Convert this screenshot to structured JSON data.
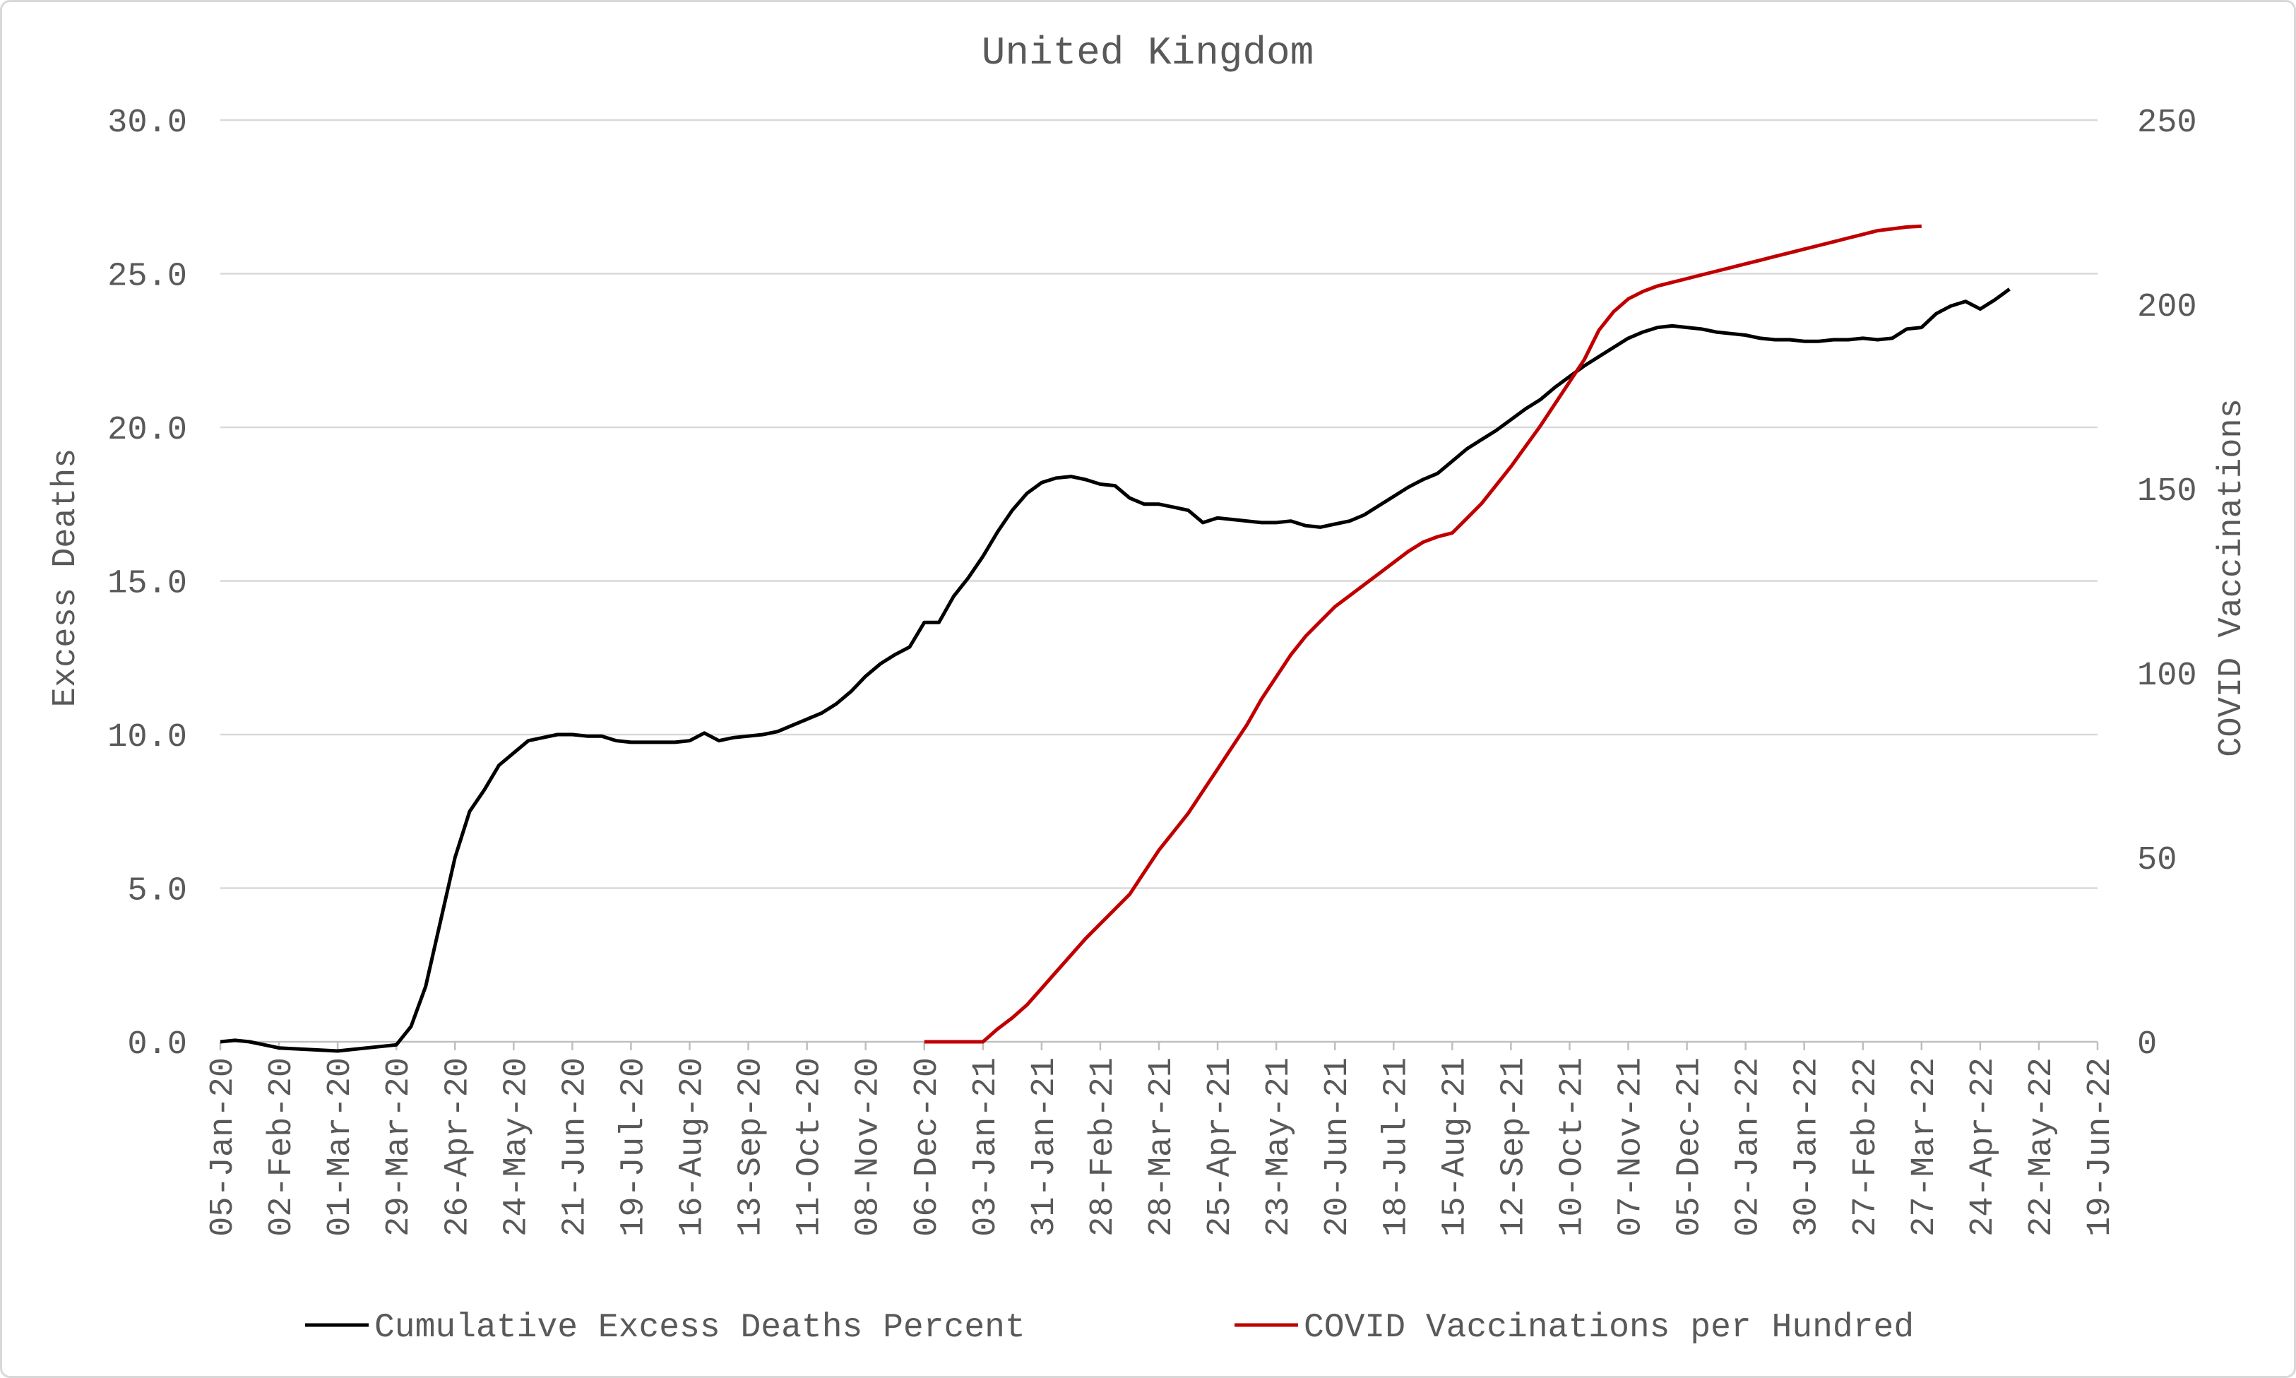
{
  "chart_data": {
    "type": "line",
    "title": "United Kingdom",
    "ylabel": "Excess Deaths",
    "y2label": "COVID Vaccinations",
    "ylim": [
      0,
      30
    ],
    "y2lim": [
      0,
      250
    ],
    "y_ticks": [
      "0.0",
      "5.0",
      "10.0",
      "15.0",
      "20.0",
      "25.0",
      "30.0"
    ],
    "y2_ticks": [
      "0",
      "50",
      "100",
      "150",
      "200",
      "250"
    ],
    "x_ticks": [
      "05-Jan-20",
      "02-Feb-20",
      "01-Mar-20",
      "29-Mar-20",
      "26-Apr-20",
      "24-May-20",
      "21-Jun-20",
      "19-Jul-20",
      "16-Aug-20",
      "13-Sep-20",
      "11-Oct-20",
      "08-Nov-20",
      "06-Dec-20",
      "03-Jan-21",
      "31-Jan-21",
      "28-Feb-21",
      "28-Mar-21",
      "25-Apr-21",
      "23-May-21",
      "20-Jun-21",
      "18-Jul-21",
      "15-Aug-21",
      "12-Sep-21",
      "10-Oct-21",
      "07-Nov-21",
      "05-Dec-21",
      "02-Jan-22",
      "30-Jan-22",
      "27-Feb-22",
      "27-Mar-22",
      "24-Apr-22",
      "22-May-22",
      "19-Jun-22"
    ],
    "x_unit": "weeks since 05-Jan-20",
    "grid": true,
    "legend_position": "bottom",
    "series": [
      {
        "name": "Cumulative Excess Deaths Percent",
        "axis": "left",
        "color": "#000000",
        "points": [
          [
            0,
            0.0
          ],
          [
            1,
            0.05
          ],
          [
            2,
            0.0
          ],
          [
            3,
            -0.1
          ],
          [
            4,
            -0.2
          ],
          [
            8,
            -0.3
          ],
          [
            12,
            -0.1
          ],
          [
            13,
            0.5
          ],
          [
            14,
            1.8
          ],
          [
            15,
            3.9
          ],
          [
            16,
            6.0
          ],
          [
            17,
            7.5
          ],
          [
            18,
            8.2
          ],
          [
            19,
            9.0
          ],
          [
            20,
            9.4
          ],
          [
            21,
            9.8
          ],
          [
            22,
            9.9
          ],
          [
            23,
            10.0
          ],
          [
            24,
            10.0
          ],
          [
            25,
            9.95
          ],
          [
            26,
            9.95
          ],
          [
            27,
            9.8
          ],
          [
            28,
            9.75
          ],
          [
            29,
            9.75
          ],
          [
            30,
            9.75
          ],
          [
            31,
            9.75
          ],
          [
            32,
            9.8
          ],
          [
            33,
            10.05
          ],
          [
            34,
            9.8
          ],
          [
            35,
            9.9
          ],
          [
            36,
            9.95
          ],
          [
            37,
            10.0
          ],
          [
            38,
            10.1
          ],
          [
            39,
            10.3
          ],
          [
            40,
            10.5
          ],
          [
            41,
            10.7
          ],
          [
            42,
            11.0
          ],
          [
            43,
            11.4
          ],
          [
            44,
            11.9
          ],
          [
            45,
            12.3
          ],
          [
            46,
            12.6
          ],
          [
            47,
            12.85
          ],
          [
            48,
            13.65
          ],
          [
            49,
            13.65
          ],
          [
            50,
            14.5
          ],
          [
            51,
            15.1
          ],
          [
            52,
            15.8
          ],
          [
            53,
            16.6
          ],
          [
            54,
            17.3
          ],
          [
            55,
            17.85
          ],
          [
            56,
            18.2
          ],
          [
            57,
            18.35
          ],
          [
            58,
            18.4
          ],
          [
            59,
            18.3
          ],
          [
            60,
            18.15
          ],
          [
            61,
            18.1
          ],
          [
            62,
            17.7
          ],
          [
            63,
            17.5
          ],
          [
            64,
            17.5
          ],
          [
            65,
            17.4
          ],
          [
            66,
            17.3
          ],
          [
            67,
            16.9
          ],
          [
            68,
            17.05
          ],
          [
            69,
            17.0
          ],
          [
            70,
            16.95
          ],
          [
            71,
            16.9
          ],
          [
            72,
            16.9
          ],
          [
            73,
            16.95
          ],
          [
            74,
            16.8
          ],
          [
            75,
            16.75
          ],
          [
            76,
            16.85
          ],
          [
            77,
            16.95
          ],
          [
            78,
            17.15
          ],
          [
            79,
            17.45
          ],
          [
            80,
            17.75
          ],
          [
            81,
            18.05
          ],
          [
            82,
            18.3
          ],
          [
            83,
            18.5
          ],
          [
            84,
            18.9
          ],
          [
            85,
            19.3
          ],
          [
            86,
            19.6
          ],
          [
            87,
            19.9
          ],
          [
            88,
            20.25
          ],
          [
            89,
            20.6
          ],
          [
            90,
            20.9
          ],
          [
            91,
            21.3
          ],
          [
            92,
            21.65
          ],
          [
            93,
            22.0
          ],
          [
            94,
            22.3
          ],
          [
            95,
            22.6
          ],
          [
            96,
            22.9
          ],
          [
            97,
            23.1
          ],
          [
            98,
            23.25
          ],
          [
            99,
            23.3
          ],
          [
            100,
            23.25
          ],
          [
            101,
            23.2
          ],
          [
            102,
            23.1
          ],
          [
            103,
            23.05
          ],
          [
            104,
            23.0
          ],
          [
            105,
            22.9
          ],
          [
            106,
            22.85
          ],
          [
            107,
            22.85
          ],
          [
            108,
            22.8
          ],
          [
            109,
            22.8
          ],
          [
            110,
            22.85
          ],
          [
            111,
            22.85
          ],
          [
            112,
            22.9
          ],
          [
            113,
            22.85
          ],
          [
            114,
            22.9
          ],
          [
            115,
            23.2
          ],
          [
            116,
            23.25
          ],
          [
            117,
            23.7
          ],
          [
            118,
            23.95
          ],
          [
            119,
            24.1
          ],
          [
            120,
            23.85
          ],
          [
            121,
            24.15
          ],
          [
            122,
            24.5
          ]
        ]
      },
      {
        "name": "COVID Vaccinations per Hundred",
        "axis": "right",
        "color": "#c00000",
        "points": [
          [
            48,
            0
          ],
          [
            49,
            0
          ],
          [
            50,
            0
          ],
          [
            51,
            0
          ],
          [
            52,
            0
          ],
          [
            53,
            3.5
          ],
          [
            54,
            6.5
          ],
          [
            55,
            10
          ],
          [
            56,
            14.5
          ],
          [
            57,
            19
          ],
          [
            58,
            23.5
          ],
          [
            59,
            28
          ],
          [
            60,
            32
          ],
          [
            61,
            36
          ],
          [
            62,
            40
          ],
          [
            63,
            46
          ],
          [
            64,
            52
          ],
          [
            65,
            57
          ],
          [
            66,
            62
          ],
          [
            67,
            68
          ],
          [
            68,
            74
          ],
          [
            69,
            80
          ],
          [
            70,
            86
          ],
          [
            71,
            93
          ],
          [
            72,
            99
          ],
          [
            73,
            105
          ],
          [
            74,
            110
          ],
          [
            75,
            114
          ],
          [
            76,
            118
          ],
          [
            77,
            121
          ],
          [
            78,
            124
          ],
          [
            79,
            127
          ],
          [
            80,
            130
          ],
          [
            81,
            133
          ],
          [
            82,
            135.5
          ],
          [
            83,
            137
          ],
          [
            84,
            138
          ],
          [
            85,
            142
          ],
          [
            86,
            146
          ],
          [
            87,
            151
          ],
          [
            88,
            156
          ],
          [
            89,
            161.5
          ],
          [
            90,
            167
          ],
          [
            91,
            173
          ],
          [
            92,
            179
          ],
          [
            93,
            185
          ],
          [
            94,
            193
          ],
          [
            95,
            198
          ],
          [
            96,
            201.5
          ],
          [
            97,
            203.5
          ],
          [
            98,
            205
          ],
          [
            99,
            206
          ],
          [
            100,
            207
          ],
          [
            101,
            208
          ],
          [
            102,
            209
          ],
          [
            103,
            210
          ],
          [
            104,
            211
          ],
          [
            105,
            212
          ],
          [
            106,
            213
          ],
          [
            107,
            214
          ],
          [
            108,
            215
          ],
          [
            109,
            216
          ],
          [
            110,
            217
          ],
          [
            111,
            218
          ],
          [
            112,
            219
          ],
          [
            113,
            220
          ],
          [
            114,
            220.5
          ],
          [
            115,
            221
          ],
          [
            116,
            221.2
          ]
        ]
      }
    ]
  }
}
